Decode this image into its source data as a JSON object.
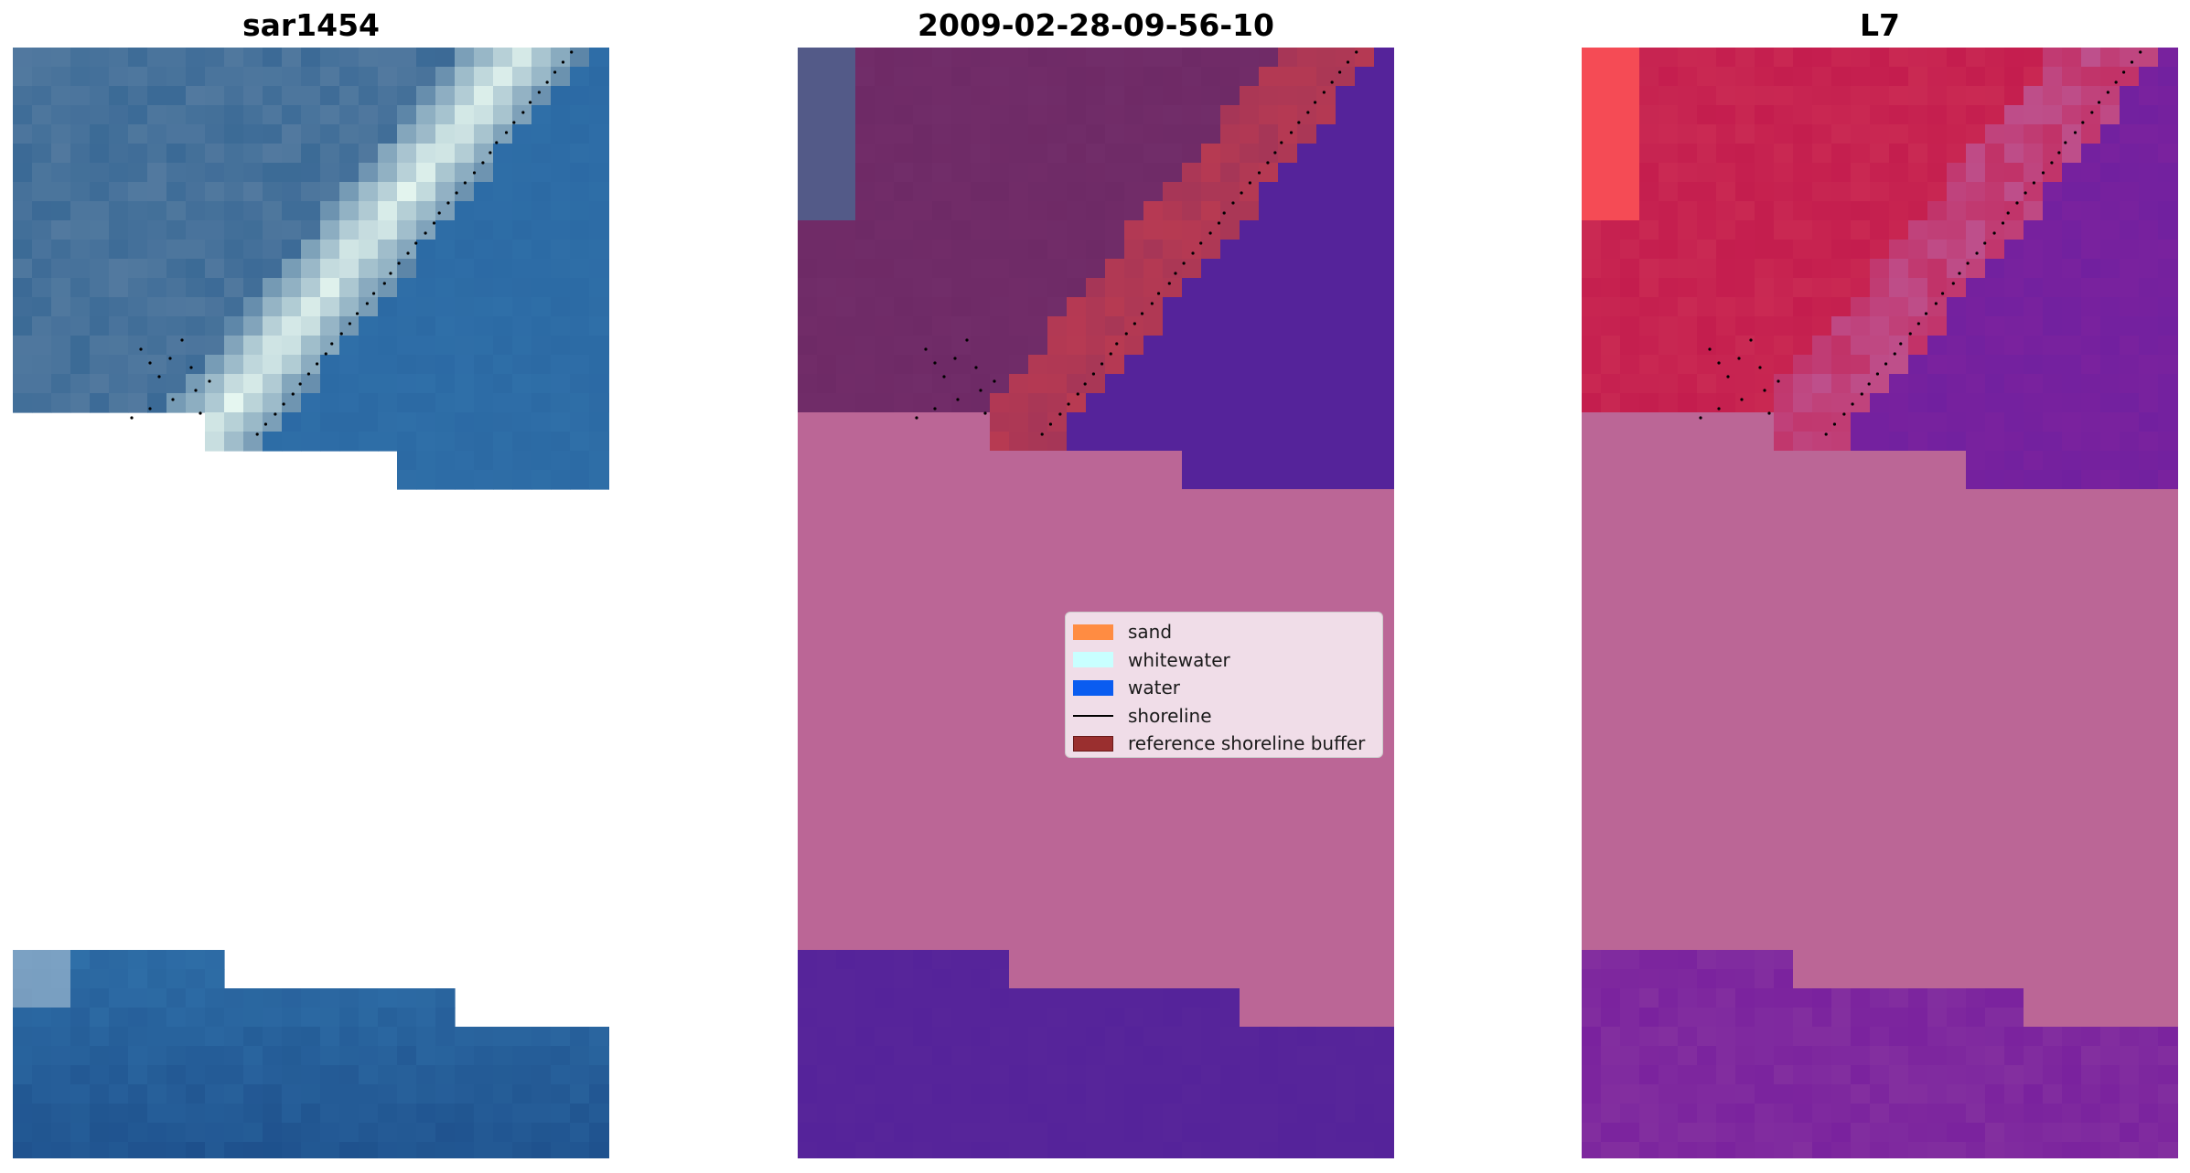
{
  "panels": [
    {
      "title": "sar1454"
    },
    {
      "title": "2009-02-28-09-56-10"
    },
    {
      "title": "L7"
    }
  ],
  "legend": {
    "items": [
      {
        "label": "sand",
        "color": "#ff8c42",
        "kind": "patch"
      },
      {
        "label": "whitewater",
        "color": "#c8ffff",
        "kind": "patch"
      },
      {
        "label": "water",
        "color": "#0a5cf0",
        "kind": "patch"
      },
      {
        "label": "shoreline",
        "color": "#000000",
        "kind": "line"
      },
      {
        "label": "reference shoreline buffer",
        "color": "#9a2f2f",
        "kind": "patch"
      }
    ]
  },
  "colors": {
    "nodata_mask": "#bb6696",
    "water_overlay": "#55239a",
    "buffer_overlay": "#b83a52",
    "land_overlay": "#6e2a66",
    "l7_land": "#c41d4e",
    "l7_water": "#7a229e",
    "rgb_water": "#2f6fa8",
    "rgb_land": "#3b6a96",
    "rgb_whitewater": "#e6f7f0"
  }
}
